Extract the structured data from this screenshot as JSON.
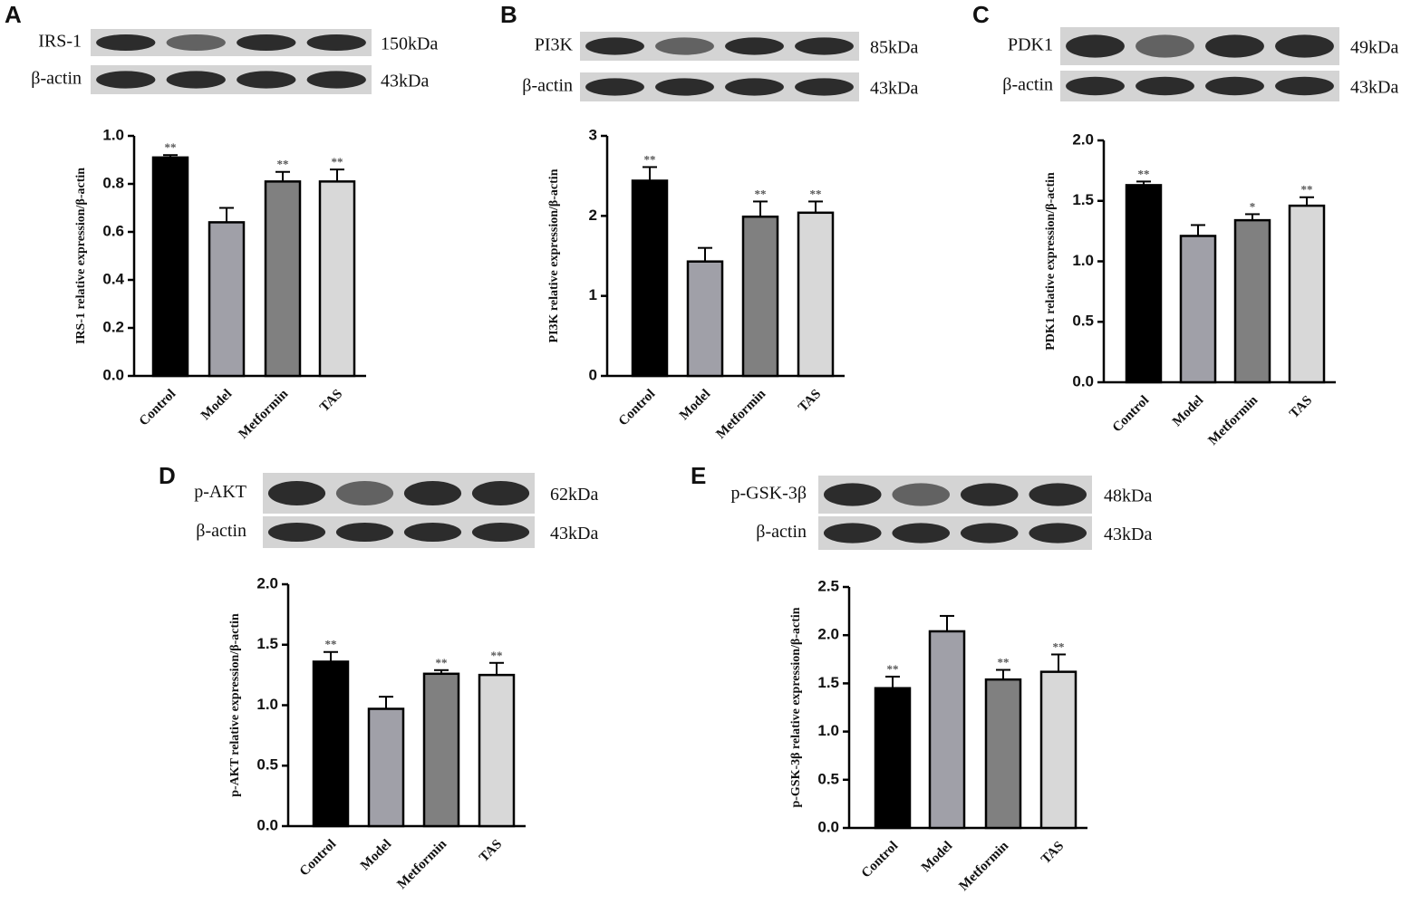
{
  "chart_data": [
    {
      "type": "bar",
      "panel": "A",
      "blots": [
        {
          "protein": "IRS-1",
          "size": "150kDa"
        },
        {
          "protein": "β-actin",
          "size": "43kDa"
        }
      ],
      "y_label": "IRS-1 relative expression/β-actin",
      "categories": [
        "Control",
        "Model",
        "Metformin",
        "TAS"
      ],
      "values": [
        0.91,
        0.64,
        0.81,
        0.81
      ],
      "errors": [
        0.01,
        0.06,
        0.04,
        0.05
      ],
      "annotations": [
        "**",
        null,
        "**",
        "**"
      ],
      "colors": [
        "#000000",
        "#a0a0a8",
        "#808080",
        "#d8d8d8"
      ],
      "ylim": [
        0,
        1
      ],
      "yticks": [
        {
          "value": 0,
          "label": "0.0"
        },
        {
          "value": 0.2,
          "label": "0.2"
        },
        {
          "value": 0.4,
          "label": "0.4"
        },
        {
          "value": 0.6,
          "label": "0.6"
        },
        {
          "value": 0.8,
          "label": "0.8"
        },
        {
          "value": 1,
          "label": "1.0"
        }
      ]
    },
    {
      "type": "bar",
      "panel": "B",
      "blots": [
        {
          "protein": "PI3K",
          "size": "85kDa"
        },
        {
          "protein": "β-actin",
          "size": "43kDa"
        }
      ],
      "y_label": "PI3K relative expression/β-actin",
      "categories": [
        "Control",
        "Model",
        "Metformin",
        "TAS"
      ],
      "values": [
        2.44,
        1.43,
        1.99,
        2.04
      ],
      "errors": [
        0.17,
        0.17,
        0.19,
        0.14
      ],
      "annotations": [
        "**",
        null,
        "**",
        "**"
      ],
      "colors": [
        "#000000",
        "#a0a0a8",
        "#808080",
        "#d8d8d8"
      ],
      "ylim": [
        0,
        3
      ],
      "yticks": [
        0,
        1,
        2,
        3
      ]
    },
    {
      "type": "bar",
      "panel": "C",
      "blots": [
        {
          "protein": "PDK1",
          "size": "49kDa"
        },
        {
          "protein": "β-actin",
          "size": "43kDa"
        }
      ],
      "y_label": "PDK1 relative expression/β-actin",
      "categories": [
        "Control",
        "Model",
        "Metformin",
        "TAS"
      ],
      "values": [
        1.63,
        1.21,
        1.34,
        1.46
      ],
      "errors": [
        0.03,
        0.09,
        0.05,
        0.07
      ],
      "annotations": [
        "**",
        null,
        "*",
        "**"
      ],
      "colors": [
        "#000000",
        "#a0a0a8",
        "#808080",
        "#d8d8d8"
      ],
      "ylim": [
        0,
        2
      ],
      "yticks": [
        {
          "value": 0,
          "label": "0.0"
        },
        {
          "value": 0.5,
          "label": "0.5"
        },
        {
          "value": 1,
          "label": "1.0"
        },
        {
          "value": 1.5,
          "label": "1.5"
        },
        {
          "value": 2,
          "label": "2.0"
        }
      ]
    },
    {
      "type": "bar",
      "panel": "D",
      "blots": [
        {
          "protein": "p-AKT",
          "size": "62kDa"
        },
        {
          "protein": "β-actin",
          "size": "43kDa"
        }
      ],
      "y_label": "p-AKT relative expression/β-actin",
      "categories": [
        "Control",
        "Model",
        "Metformin",
        "TAS"
      ],
      "values": [
        1.36,
        0.97,
        1.26,
        1.25
      ],
      "errors": [
        0.08,
        0.1,
        0.03,
        0.1
      ],
      "annotations": [
        "**",
        null,
        "**",
        "**"
      ],
      "colors": [
        "#000000",
        "#a0a0a8",
        "#808080",
        "#d8d8d8"
      ],
      "ylim": [
        0,
        2
      ],
      "yticks": [
        {
          "value": 0,
          "label": "0.0"
        },
        {
          "value": 0.5,
          "label": "0.5"
        },
        {
          "value": 1,
          "label": "1.0"
        },
        {
          "value": 1.5,
          "label": "1.5"
        },
        {
          "value": 2,
          "label": "2.0"
        }
      ]
    },
    {
      "type": "bar",
      "panel": "E",
      "blots": [
        {
          "protein": "p-GSK-3β",
          "size": "48kDa"
        },
        {
          "protein": "β-actin",
          "size": "43kDa"
        }
      ],
      "y_label": "p-GSK-3β relative expression/β-actin",
      "categories": [
        "Control",
        "Model",
        "Metformin",
        "TAS"
      ],
      "values": [
        1.45,
        2.04,
        1.54,
        1.62
      ],
      "errors": [
        0.12,
        0.16,
        0.1,
        0.18
      ],
      "annotations": [
        "**",
        null,
        "**",
        "**"
      ],
      "colors": [
        "#000000",
        "#a0a0a8",
        "#808080",
        "#d8d8d8"
      ],
      "ylim": [
        0,
        2.5
      ],
      "yticks": [
        {
          "value": 0,
          "label": "0.0"
        },
        {
          "value": 0.5,
          "label": "0.5"
        },
        {
          "value": 1,
          "label": "1.0"
        },
        {
          "value": 1.5,
          "label": "1.5"
        },
        {
          "value": 2,
          "label": "2.0"
        },
        {
          "value": 2.5,
          "label": "2.5"
        }
      ]
    }
  ]
}
